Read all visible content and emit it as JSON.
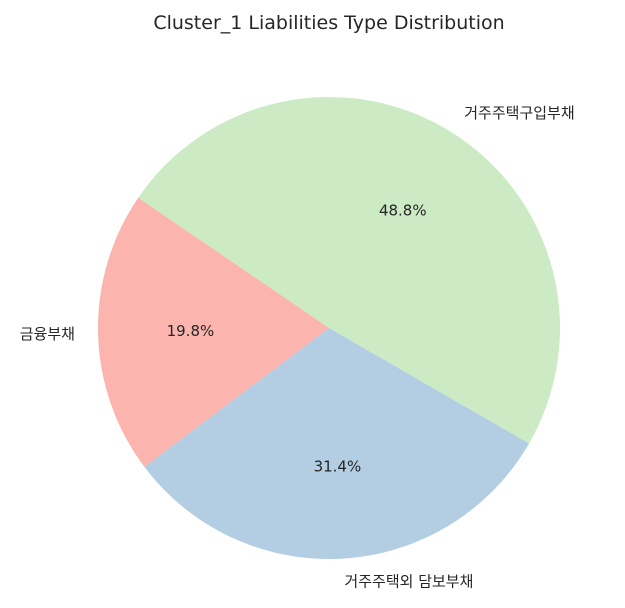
{
  "chart_data": {
    "type": "pie",
    "title": "Cluster_1 Liabilities Type Distribution",
    "slices": [
      {
        "label": "거주주택구입부채",
        "value": 48.8,
        "pct_label": "48.8%",
        "color": "#ccebc5"
      },
      {
        "label": "금융부채",
        "value": 19.8,
        "pct_label": "19.8%",
        "color": "#fbb4ae"
      },
      {
        "label": "거주주택외 담보부채",
        "value": 31.4,
        "pct_label": "31.4%",
        "color": "#b3cde3"
      }
    ],
    "start_angle_deg": -30,
    "direction": "counterclockwise"
  }
}
